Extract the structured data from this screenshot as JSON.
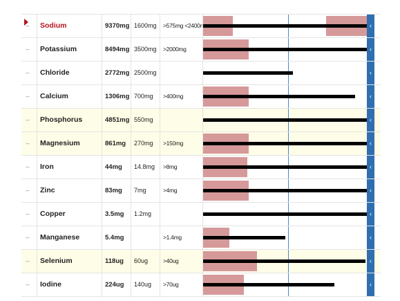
{
  "colors": {
    "alert": "#b3141e",
    "limit_zone": "#d6999a",
    "bar": "#000000",
    "reference_line": "#4a86c8",
    "handle": "#2f6fb0",
    "highlight_row": "#fefde7"
  },
  "icons": {
    "row_toggle": "dash-icon",
    "side_handle": "chevron-left-icon",
    "alert_marker": "triangle-right-icon"
  },
  "rows": [
    {
      "dash": "–",
      "name": "Sodium",
      "amount": "9370mg",
      "rda": "1600mg",
      "limit": ">575mg <2400mg",
      "alert": true,
      "highlight": false,
      "bar_fraction": 1.0,
      "zone_low_fraction": 0.18,
      "zone_high_fraction": 0.25
    },
    {
      "dash": "–",
      "name": "Potassium",
      "amount": "8494mg",
      "rda": "3500mg",
      "limit": ">2000mg",
      "alert": false,
      "highlight": false,
      "bar_fraction": 1.0,
      "zone_low_fraction": 0.28,
      "zone_high_fraction": 0
    },
    {
      "dash": "–",
      "name": "Chloride",
      "amount": "2772mg",
      "rda": "2500mg",
      "limit": "",
      "alert": false,
      "highlight": false,
      "bar_fraction": 0.55,
      "zone_low_fraction": 0,
      "zone_high_fraction": 0
    },
    {
      "dash": "–",
      "name": "Calcium",
      "amount": "1306mg",
      "rda": "700mg",
      "limit": ">400mg",
      "alert": false,
      "highlight": false,
      "bar_fraction": 0.93,
      "zone_low_fraction": 0.28,
      "zone_high_fraction": 0
    },
    {
      "dash": "–",
      "name": "Phosphorus",
      "amount": "4851mg",
      "rda": "550mg",
      "limit": "",
      "alert": false,
      "highlight": true,
      "bar_fraction": 1.0,
      "zone_low_fraction": 0,
      "zone_high_fraction": 0
    },
    {
      "dash": "–",
      "name": "Magnesium",
      "amount": "861mg",
      "rda": "270mg",
      "limit": ">150mg",
      "alert": false,
      "highlight": true,
      "bar_fraction": 1.0,
      "zone_low_fraction": 0.28,
      "zone_high_fraction": 0
    },
    {
      "dash": "–",
      "name": "Iron",
      "amount": "44mg",
      "rda": "14.8mg",
      "limit": ">8mg",
      "alert": false,
      "highlight": false,
      "bar_fraction": 1.0,
      "zone_low_fraction": 0.27,
      "zone_high_fraction": 0
    },
    {
      "dash": "–",
      "name": "Zinc",
      "amount": "83mg",
      "rda": "7mg",
      "limit": ">4mg",
      "alert": false,
      "highlight": false,
      "bar_fraction": 1.0,
      "zone_low_fraction": 0.28,
      "zone_high_fraction": 0
    },
    {
      "dash": "–",
      "name": "Copper",
      "amount": "3.5mg",
      "rda": "1.2mg",
      "limit": "",
      "alert": false,
      "highlight": false,
      "bar_fraction": 1.0,
      "zone_low_fraction": 0,
      "zone_high_fraction": 0
    },
    {
      "dash": "–",
      "name": "Manganese",
      "amount": "5.4mg",
      "rda": "",
      "limit": ">1.4mg",
      "alert": false,
      "highlight": false,
      "bar_fraction": 0.5,
      "zone_low_fraction": 0.16,
      "zone_high_fraction": 0
    },
    {
      "dash": "–",
      "name": "Selenium",
      "amount": "118ug",
      "rda": "60ug",
      "limit": ">40ug",
      "alert": false,
      "highlight": true,
      "bar_fraction": 0.99,
      "zone_low_fraction": 0.33,
      "zone_high_fraction": 0
    },
    {
      "dash": "–",
      "name": "Iodine",
      "amount": "224ug",
      "rda": "140ug",
      "limit": ">70ug",
      "alert": false,
      "highlight": false,
      "bar_fraction": 0.8,
      "zone_low_fraction": 0.25,
      "zone_high_fraction": 0
    }
  ]
}
